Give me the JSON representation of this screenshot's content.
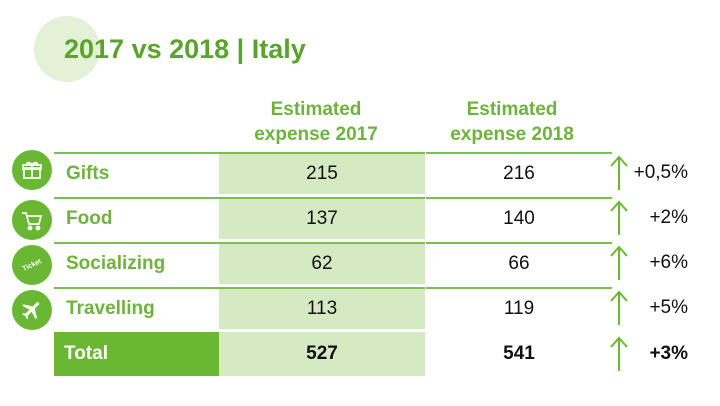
{
  "title": "2017 vs 2018 | Italy",
  "columns": {
    "col2017_line1": "Estimated",
    "col2017_line2": "expense 2017",
    "col2018_line1": "Estimated",
    "col2018_line2": "expense 2018"
  },
  "rows": [
    {
      "category": "Gifts",
      "icon": "gift-icon",
      "v2017": "215",
      "v2018": "216",
      "change": "+0,5%"
    },
    {
      "category": "Food",
      "icon": "shopping-cart-icon",
      "v2017": "137",
      "v2018": "140",
      "change": "+2%"
    },
    {
      "category": "Socializing",
      "icon": "ticket-icon",
      "icon_text": "Ticket",
      "v2017": "62",
      "v2018": "66",
      "change": "+6%"
    },
    {
      "category": "Travelling",
      "icon": "airplane-icon",
      "v2017": "113",
      "v2018": "119",
      "change": "+5%"
    }
  ],
  "total": {
    "label": "Total",
    "v2017": "527",
    "v2018": "541",
    "change": "+3%"
  },
  "colors": {
    "accent_green": "#6ab733",
    "title_green": "#5aa32c",
    "light_green_fill": "#d5e9c3"
  }
}
